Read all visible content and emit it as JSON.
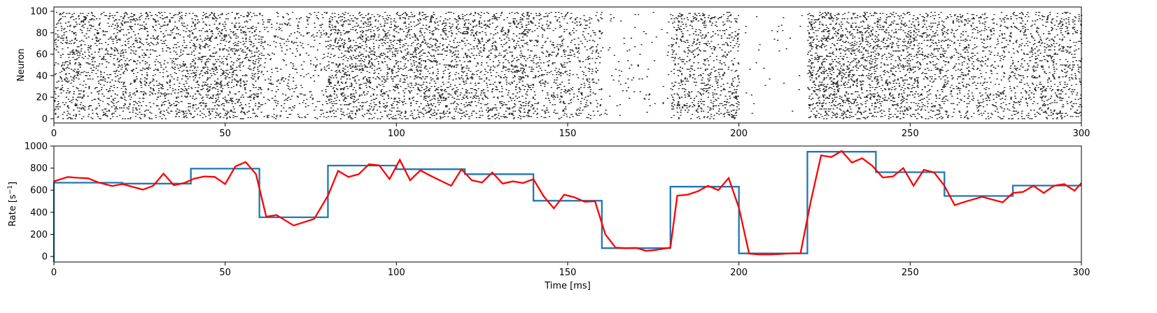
{
  "chart_data": [
    {
      "type": "scatter",
      "title": "",
      "xlabel": "",
      "ylabel": "Neuron",
      "xlim": [
        0,
        300
      ],
      "ylim": [
        -4,
        104
      ],
      "xticks": [
        0,
        50,
        100,
        150,
        200,
        250,
        300
      ],
      "yticks": [
        0,
        20,
        40,
        60,
        80,
        100
      ],
      "grid": false,
      "neurons": 100,
      "marker_color": "#000000",
      "segments_ms": [
        {
          "start": 0,
          "end": 20,
          "rate": 668
        },
        {
          "start": 20,
          "end": 40,
          "rate": 660
        },
        {
          "start": 40,
          "end": 60,
          "rate": 795
        },
        {
          "start": 60,
          "end": 80,
          "rate": 355
        },
        {
          "start": 80,
          "end": 100,
          "rate": 823
        },
        {
          "start": 100,
          "end": 120,
          "rate": 790
        },
        {
          "start": 120,
          "end": 140,
          "rate": 745
        },
        {
          "start": 140,
          "end": 160,
          "rate": 505
        },
        {
          "start": 160,
          "end": 180,
          "rate": 75
        },
        {
          "start": 180,
          "end": 200,
          "rate": 632
        },
        {
          "start": 200,
          "end": 220,
          "rate": 28
        },
        {
          "start": 220,
          "end": 240,
          "rate": 948
        },
        {
          "start": 240,
          "end": 260,
          "rate": 763
        },
        {
          "start": 260,
          "end": 280,
          "rate": 548
        },
        {
          "start": 280,
          "end": 300,
          "rate": 642
        }
      ]
    },
    {
      "type": "line",
      "title": "",
      "xlabel": "Time [ms]",
      "ylabel": "Rate [s",
      "ylabel_sup": "−1",
      "ylabel_end": "]",
      "xlim": [
        0,
        300
      ],
      "ylim": [
        -50,
        1000
      ],
      "xticks": [
        0,
        50,
        100,
        150,
        200,
        250,
        300
      ],
      "yticks": [
        0,
        200,
        400,
        600,
        800,
        1000
      ],
      "grid": false,
      "series": [
        {
          "color": "#1f77b4",
          "style": "step",
          "x": [
            0,
            20,
            40,
            60,
            80,
            100,
            120,
            140,
            160,
            180,
            200,
            220,
            240,
            260,
            280,
            300
          ],
          "values": [
            668,
            660,
            795,
            355,
            823,
            790,
            745,
            505,
            75,
            632,
            28,
            948,
            763,
            548,
            642,
            642
          ]
        },
        {
          "color": "#ff0000",
          "style": "line",
          "x": [
            0,
            4,
            7,
            10,
            13,
            17,
            20,
            26,
            29,
            32,
            35,
            38,
            41,
            44,
            47,
            50,
            53,
            56,
            59,
            62,
            65,
            70,
            76,
            80,
            83,
            86,
            89,
            92,
            95,
            98,
            101,
            104,
            107,
            110,
            116,
            119,
            122,
            125,
            128,
            131,
            134,
            137,
            140,
            143,
            146,
            149,
            152,
            155,
            158,
            161,
            164,
            167,
            170,
            173,
            176,
            180,
            182,
            185,
            188,
            191,
            194,
            197,
            200,
            203,
            206,
            209,
            212,
            215,
            218,
            221,
            224,
            227,
            230,
            233,
            236,
            239,
            242,
            245,
            248,
            251,
            254,
            257,
            260,
            263,
            266,
            271,
            277,
            280,
            283,
            286,
            289,
            292,
            295,
            298,
            300
          ],
          "values": [
            680,
            720,
            712,
            708,
            670,
            638,
            655,
            605,
            640,
            750,
            645,
            665,
            705,
            725,
            720,
            655,
            815,
            855,
            745,
            360,
            375,
            280,
            340,
            550,
            775,
            720,
            745,
            835,
            825,
            700,
            875,
            690,
            780,
            730,
            640,
            790,
            690,
            670,
            760,
            660,
            680,
            665,
            700,
            545,
            435,
            560,
            535,
            495,
            500,
            200,
            80,
            75,
            78,
            50,
            60,
            80,
            550,
            560,
            590,
            640,
            600,
            710,
            440,
            25,
            18,
            18,
            22,
            28,
            30,
            500,
            915,
            900,
            955,
            850,
            890,
            820,
            715,
            725,
            800,
            640,
            785,
            760,
            640,
            465,
            495,
            540,
            490,
            575,
            585,
            640,
            575,
            640,
            655,
            595,
            665
          ]
        }
      ]
    }
  ]
}
